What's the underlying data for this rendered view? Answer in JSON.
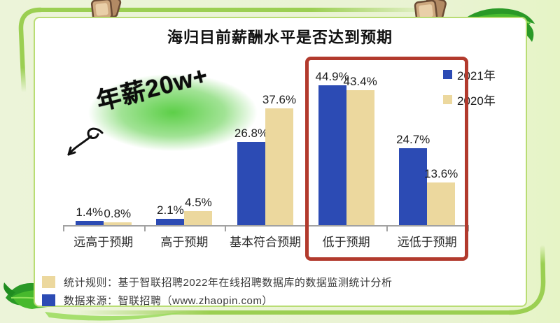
{
  "page": {
    "title": "海归目前薪酬水平是否达到预期"
  },
  "annotation": {
    "text": "年薪20w+"
  },
  "colors": {
    "series_2021": "#2c4bb4",
    "series_2020": "#ecd89e",
    "highlight_box": "#b23a2d",
    "frame_green": "#9bcf52",
    "card_bg": "#ffffff",
    "page_bg": "#eaf3d6",
    "axis": "#a2a2a2"
  },
  "legend": {
    "items": [
      {
        "label": "2021年",
        "color": "#2c4bb4"
      },
      {
        "label": "2020年",
        "color": "#ecd89e"
      }
    ]
  },
  "footer": {
    "rows": [
      {
        "swatch": "#ecd89e",
        "text": "统计规则：基于智联招聘2022年在线招聘数据库的数据监测统计分析"
      },
      {
        "swatch": "#2c4bb4",
        "text": "数据来源：智联招聘（www.zhaopin.com）"
      }
    ]
  },
  "chart_data": {
    "type": "bar",
    "title": "海归目前薪酬水平是否达到预期",
    "categories": [
      "远高于预期",
      "高于预期",
      "基本符合预期",
      "低于预期",
      "远低于预期"
    ],
    "series": [
      {
        "name": "2021年",
        "color": "#2c4bb4",
        "values": [
          1.4,
          2.1,
          26.8,
          44.9,
          24.7
        ]
      },
      {
        "name": "2020年",
        "color": "#ecd89e",
        "values": [
          0.8,
          4.5,
          37.6,
          43.4,
          13.6
        ]
      }
    ],
    "value_suffix": "%",
    "ylim": [
      0,
      50
    ],
    "grid": false,
    "legend_position": "top-right",
    "highlighted_categories": [
      "低于预期",
      "远低于预期"
    ],
    "annotation_text": "年薪20w+"
  }
}
